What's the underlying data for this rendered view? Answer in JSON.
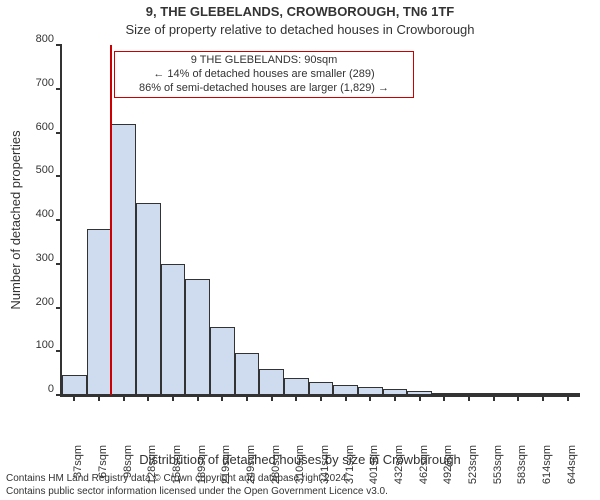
{
  "title": "9, THE GLEBELANDS, CROWBOROUGH, TN6 1TF",
  "subtitle": "Size of property relative to detached houses in Crowborough",
  "ylabel": "Number of detached properties",
  "xlabel": "Distribution of detached houses by size in Crowborough",
  "chart": {
    "type": "histogram",
    "background_color": "#ffffff",
    "axis_color": "#333333",
    "bar_color": "#cfdcf0",
    "bar_border_color": "#333333",
    "tick_fontsize": 11,
    "label_fontsize": 13,
    "title_fontsize": 13,
    "ylim": [
      0,
      800
    ],
    "ytick_step": 100,
    "categories": [
      "37sqm",
      "67sqm",
      "98sqm",
      "128sqm",
      "158sqm",
      "189sqm",
      "219sqm",
      "249sqm",
      "280sqm",
      "310sqm",
      "341sqm",
      "371sqm",
      "401sqm",
      "432sqm",
      "462sqm",
      "492sqm",
      "523sqm",
      "553sqm",
      "583sqm",
      "614sqm",
      "644sqm"
    ],
    "values": [
      45,
      380,
      620,
      440,
      300,
      265,
      155,
      95,
      60,
      38,
      30,
      22,
      18,
      14,
      10,
      5,
      3,
      2,
      2,
      1,
      1
    ],
    "reference_line": {
      "after_index": 1,
      "color": "#cc0000",
      "width": 2
    }
  },
  "callout": {
    "border_color": "#cc0000",
    "line1": "9 THE GLEBELANDS: 90sqm",
    "line2": "← 14% of detached houses are smaller (289)",
    "line3": "86% of semi-detached houses are larger (1,829) →"
  },
  "attribution": {
    "line1": "Contains HM Land Registry data © Crown copyright and database right 2024.",
    "line2": "Contains public sector information licensed under the Open Government Licence v3.0."
  }
}
